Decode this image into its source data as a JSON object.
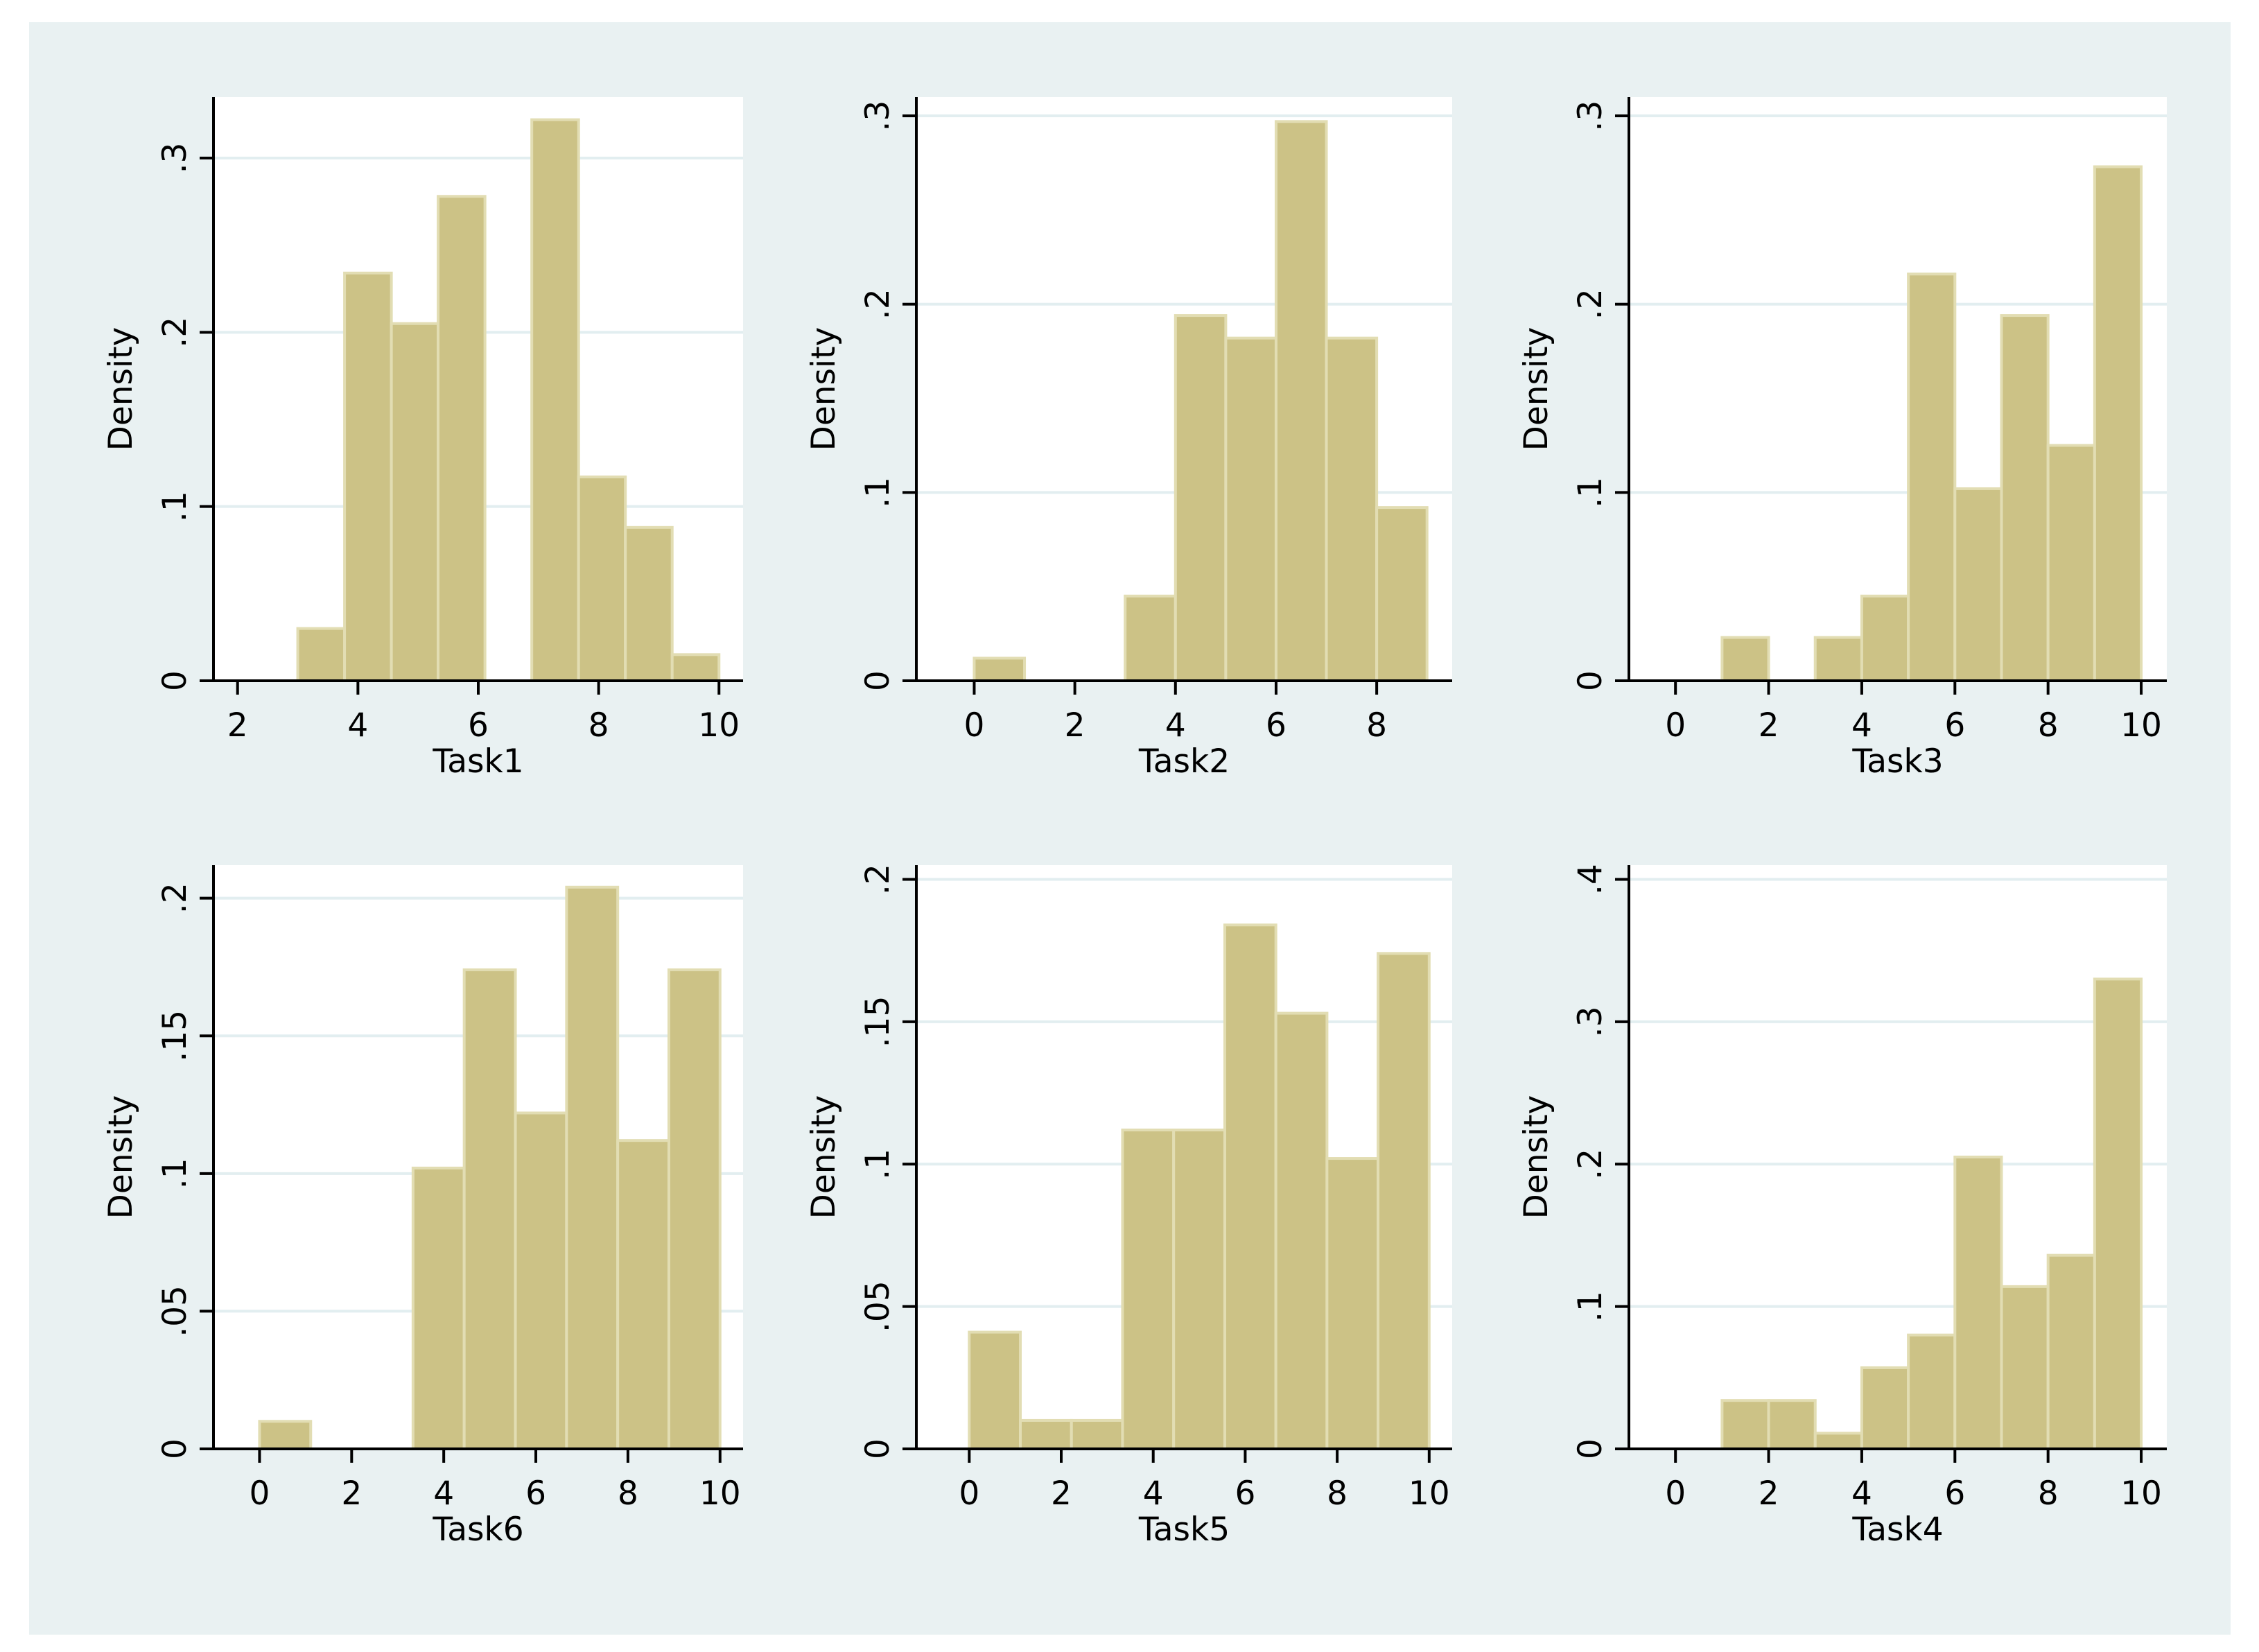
{
  "figure": {
    "bar_color": "#CCC286",
    "bar_edge_color": "#E2DDB3",
    "background_color": "#E9F1F2",
    "plot_background_color": "#FFFFFF",
    "grid_color": "#E2EEF0"
  },
  "chart_data": [
    {
      "type": "bar",
      "title": "",
      "xlabel": "Task1",
      "ylabel": "Density",
      "xlim": [
        1.6,
        10.4
      ],
      "ylim": [
        0,
        0.335
      ],
      "xticks": [
        2,
        4,
        6,
        8,
        10
      ],
      "xtick_labels": [
        "2",
        "4",
        "6",
        "8",
        "10"
      ],
      "yticks": [
        0,
        0.1,
        0.2,
        0.3
      ],
      "ytick_labels": [
        "0",
        ".1",
        ".2",
        ".3"
      ],
      "grid": true,
      "bin_edges": [
        3.0,
        3.778,
        4.556,
        5.333,
        6.111,
        6.889,
        7.667,
        8.444,
        9.222,
        10.0
      ],
      "values": [
        0.03,
        0.234,
        0.205,
        0.278,
        0.0,
        0.322,
        0.117,
        0.088,
        0.015
      ]
    },
    {
      "type": "bar",
      "title": "",
      "xlabel": "Task2",
      "ylabel": "Density",
      "xlim": [
        -1.15,
        9.5
      ],
      "ylim": [
        0,
        0.31
      ],
      "xticks": [
        0,
        2,
        4,
        6,
        8
      ],
      "xtick_labels": [
        "0",
        "2",
        "4",
        "6",
        "8"
      ],
      "yticks": [
        0,
        0.1,
        0.2,
        0.3
      ],
      "ytick_labels": [
        "0",
        ".1",
        ".2",
        ".3"
      ],
      "grid": true,
      "bin_edges": [
        0,
        1,
        2,
        3,
        4,
        5,
        6,
        7,
        8,
        9
      ],
      "values": [
        0.012,
        0.0,
        0.0,
        0.045,
        0.194,
        0.182,
        0.297,
        0.182,
        0.092
      ]
    },
    {
      "type": "bar",
      "title": "",
      "xlabel": "Task3",
      "ylabel": "Density",
      "xlim": [
        -1.0,
        10.55
      ],
      "ylim": [
        0,
        0.31
      ],
      "xticks": [
        0,
        2,
        4,
        6,
        8,
        10
      ],
      "xtick_labels": [
        "0",
        "2",
        "4",
        "6",
        "8",
        "10"
      ],
      "yticks": [
        0,
        0.1,
        0.2,
        0.3
      ],
      "ytick_labels": [
        "0",
        ".1",
        ".2",
        ".3"
      ],
      "grid": true,
      "bin_edges": [
        1,
        2,
        3,
        4,
        5,
        6,
        7,
        8,
        9,
        10
      ],
      "values": [
        0.023,
        0.0,
        0.023,
        0.045,
        0.216,
        0.102,
        0.194,
        0.125,
        0.273
      ]
    },
    {
      "type": "bar",
      "title": "",
      "xlabel": "Task6",
      "ylabel": "Density",
      "xlim": [
        -1.0,
        10.5
      ],
      "ylim": [
        0,
        0.212
      ],
      "xticks": [
        0,
        2,
        4,
        6,
        8,
        10
      ],
      "xtick_labels": [
        "0",
        "2",
        "4",
        "6",
        "8",
        "10"
      ],
      "yticks": [
        0,
        0.05,
        0.1,
        0.15,
        0.2
      ],
      "ytick_labels": [
        "0",
        ".05",
        ".1",
        ".15",
        ".2"
      ],
      "grid": true,
      "bin_edges": [
        0.0,
        1.111,
        2.222,
        3.333,
        4.444,
        5.556,
        6.667,
        7.778,
        8.889,
        10.0
      ],
      "values": [
        0.01,
        0.0,
        0.0,
        0.102,
        0.174,
        0.122,
        0.204,
        0.112,
        0.174
      ]
    },
    {
      "type": "bar",
      "title": "",
      "xlabel": "Task5",
      "ylabel": "Density",
      "xlim": [
        -1.15,
        10.5
      ],
      "ylim": [
        0,
        0.205
      ],
      "xticks": [
        0,
        2,
        4,
        6,
        8,
        10
      ],
      "xtick_labels": [
        "0",
        "2",
        "4",
        "6",
        "8",
        "10"
      ],
      "yticks": [
        0,
        0.05,
        0.1,
        0.15,
        0.2
      ],
      "ytick_labels": [
        "0",
        ".05",
        ".1",
        ".15",
        ".2"
      ],
      "grid": true,
      "bin_edges": [
        0.0,
        1.111,
        2.222,
        3.333,
        4.444,
        5.556,
        6.667,
        7.778,
        8.889,
        10.0
      ],
      "values": [
        0.041,
        0.01,
        0.01,
        0.112,
        0.112,
        0.184,
        0.153,
        0.102,
        0.174
      ]
    },
    {
      "type": "bar",
      "title": "",
      "xlabel": "Task4",
      "ylabel": "Density",
      "xlim": [
        -1.0,
        10.55
      ],
      "ylim": [
        0,
        0.41
      ],
      "xticks": [
        0,
        2,
        4,
        6,
        8,
        10
      ],
      "xtick_labels": [
        "0",
        "2",
        "4",
        "6",
        "8",
        "10"
      ],
      "yticks": [
        0,
        0.1,
        0.2,
        0.3,
        0.4
      ],
      "ytick_labels": [
        "0",
        ".1",
        ".2",
        ".3",
        ".4"
      ],
      "grid": true,
      "bin_edges": [
        1,
        2,
        3,
        4,
        5,
        6,
        7,
        8,
        9,
        10
      ],
      "values": [
        0.034,
        0.034,
        0.011,
        0.057,
        0.08,
        0.205,
        0.114,
        0.136,
        0.33
      ]
    }
  ]
}
